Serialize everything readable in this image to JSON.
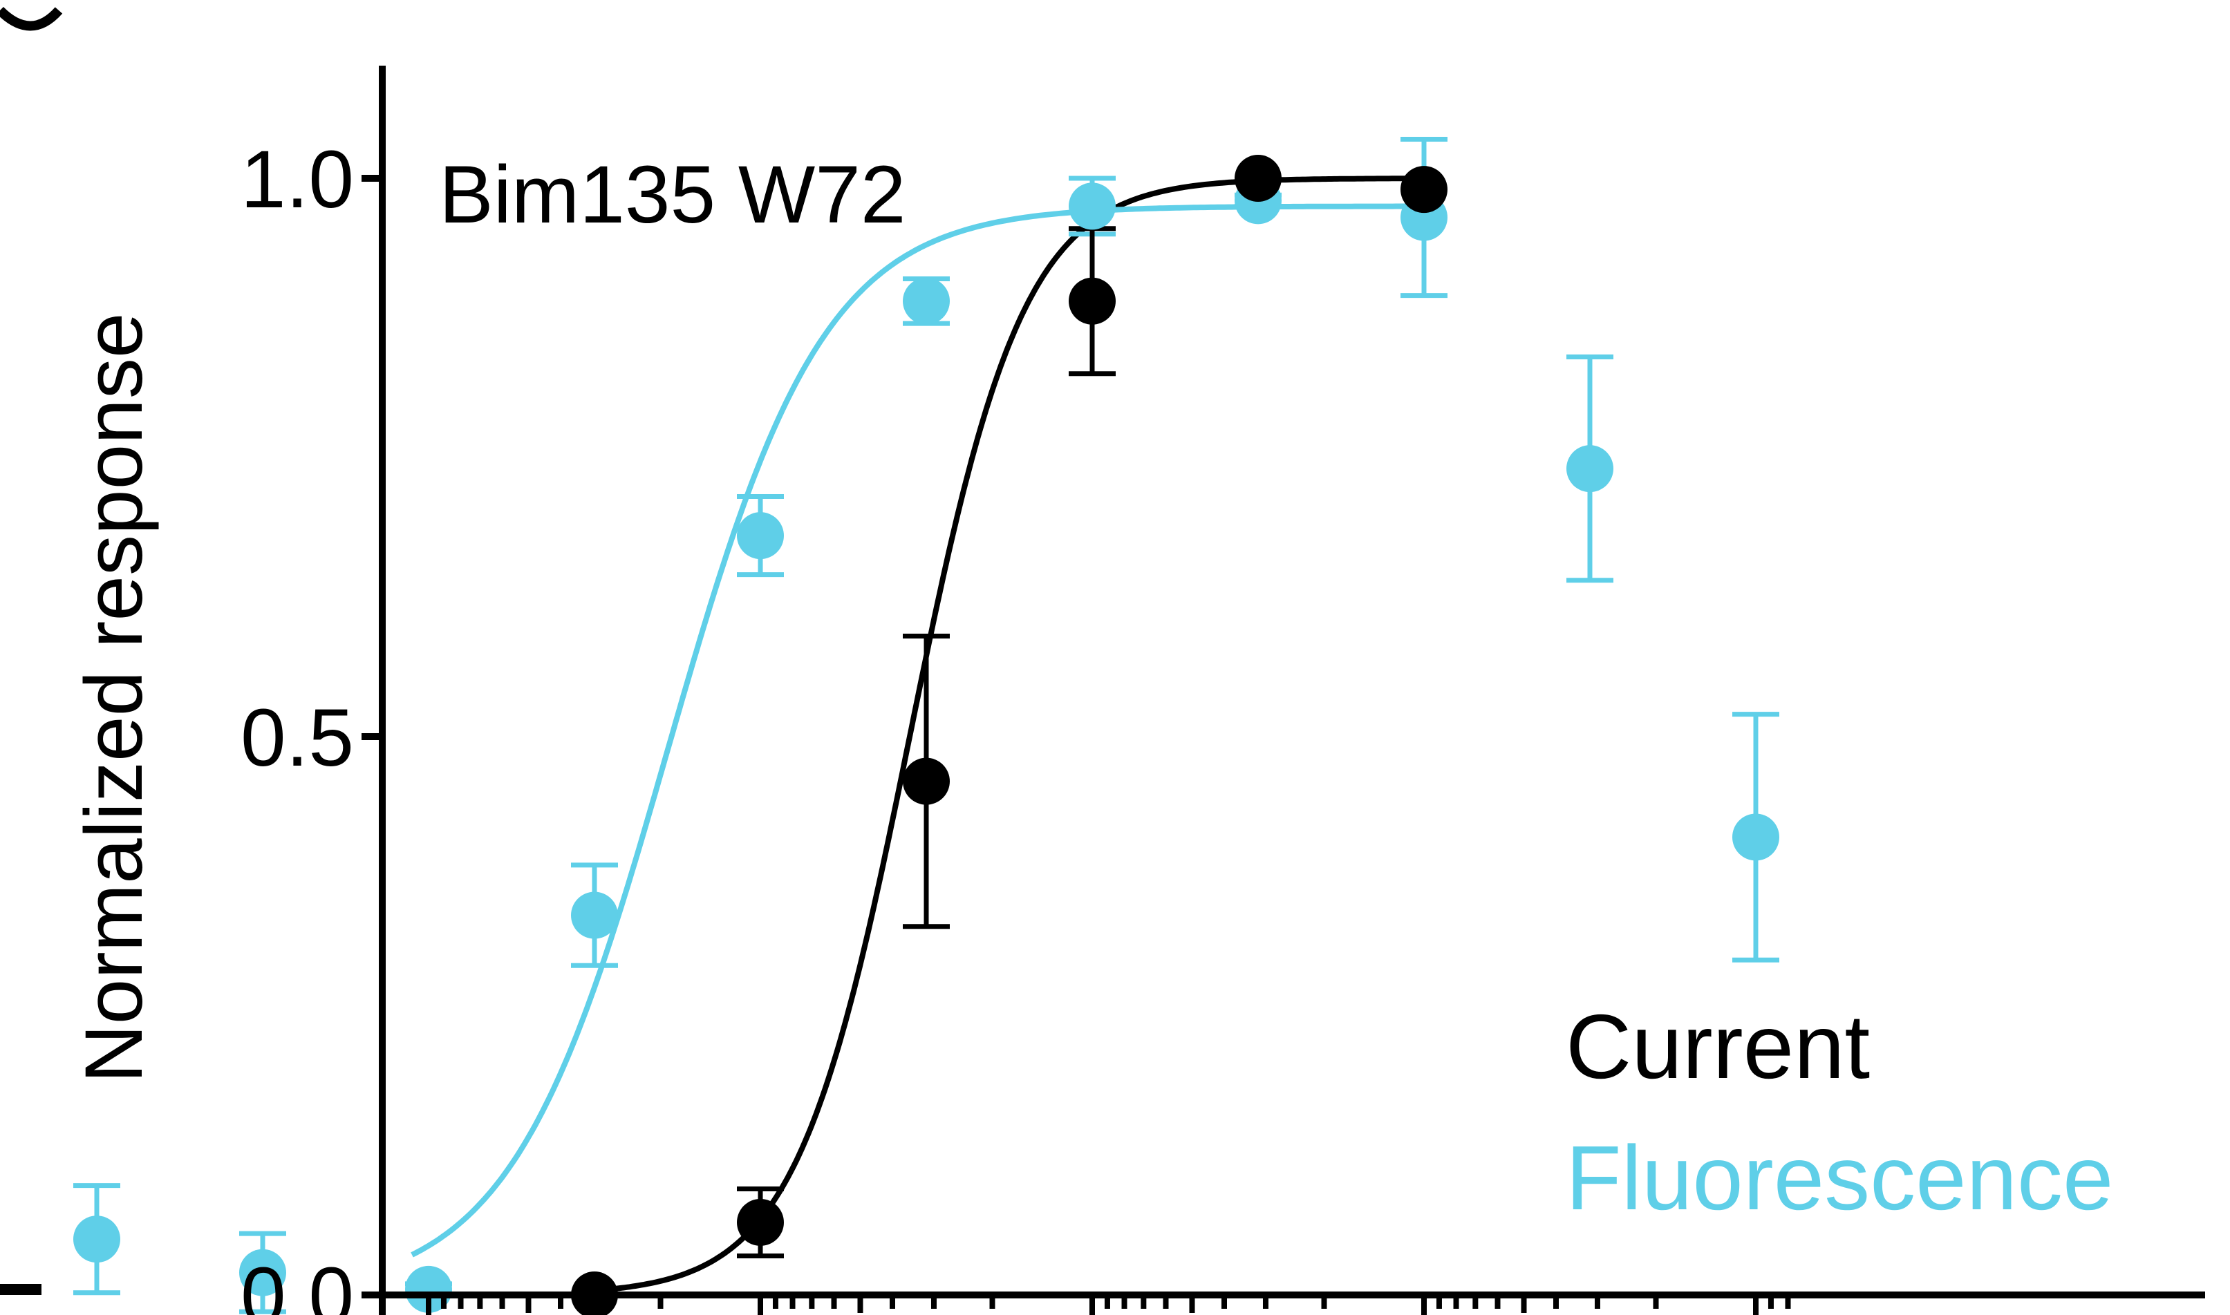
{
  "chart_data": {
    "type": "scatter",
    "title": "",
    "annotation": "Bim135 W72",
    "xlabel": "",
    "ylabel": "Normalized response",
    "x_scale": "log",
    "x_tick_labels": [],
    "ylim": [
      0,
      1.0
    ],
    "yticks": [
      {
        "value": 0.0,
        "label": "0.0"
      },
      {
        "value": 0.5,
        "label": "0.5"
      },
      {
        "value": 1.0,
        "label": "1.0"
      }
    ],
    "grid": false,
    "legend_position": "bottom-right",
    "series": [
      {
        "name": "Current",
        "color": "#000000",
        "points": [
          {
            "x": 1.5,
            "y": 0.0
          },
          {
            "x": 1.0,
            "y": 0.065,
            "err": 0.03
          },
          {
            "x": 0.5,
            "y": 0.46,
            "err": 0.13
          },
          {
            "x": 0.0,
            "y": 0.89,
            "err": 0.065
          },
          {
            "x": -0.5,
            "y": 1.0
          },
          {
            "x": -1.0,
            "y": 0.99
          }
        ],
        "fit": {
          "ec50_x": 0.55,
          "hill_slope": -2.53,
          "bottom": 0,
          "top": 1.0
        }
      },
      {
        "name": "Fluorescence",
        "color": "#5fcfe8",
        "points": [
          {
            "x": 2.0,
            "y": 0.005,
            "err": 0.005
          },
          {
            "x": 2.5,
            "y": 0.02,
            "err": 0.035
          },
          {
            "x": 3.0,
            "y": 0.05,
            "err": 0.048
          },
          {
            "x": 1.5,
            "y": 0.34,
            "err": 0.045
          },
          {
            "x": 1.0,
            "y": 0.68,
            "err": 0.035
          },
          {
            "x": 0.5,
            "y": 0.89,
            "err": 0.02
          },
          {
            "x": 0.0,
            "y": 0.975,
            "err": 0.025
          },
          {
            "x": -0.5,
            "y": 0.98,
            "err": 0.005
          },
          {
            "x": -1.0,
            "y": 0.965,
            "err": 0.07
          },
          {
            "x": -1.5,
            "y": 0.74,
            "err": 0.1
          },
          {
            "x": -2.0,
            "y": 0.41,
            "err": 0.11
          }
        ],
        "fit": {
          "ec50_x": 1.28,
          "hill_slope": -1.84,
          "bottom": 0,
          "top": 0.975
        }
      }
    ]
  }
}
